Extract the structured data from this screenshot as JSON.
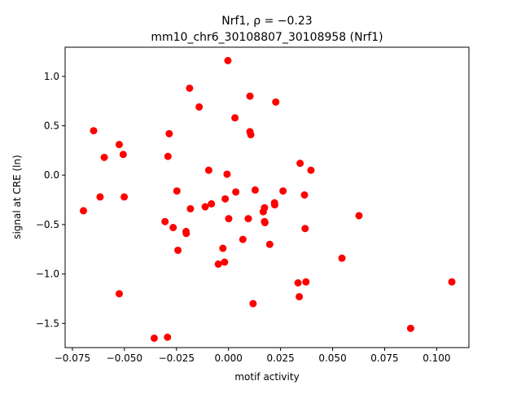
{
  "chart_data": {
    "type": "scatter",
    "title_line1": "Nrf1, ρ = −0.23",
    "title_line2": "mm10_chr6_30108807_30108958 (Nrf1)",
    "xlabel": "motif activity",
    "ylabel": "signal at CRE (ln)",
    "xlim": [
      -0.0785,
      0.1155
    ],
    "ylim": [
      -1.745,
      1.295
    ],
    "xticks": [
      -0.075,
      -0.05,
      -0.025,
      0.0,
      0.025,
      0.05,
      0.075,
      0.1
    ],
    "xtick_labels": [
      "−0.075",
      "−0.050",
      "−0.025",
      "0.000",
      "0.025",
      "0.050",
      "0.075",
      "0.100"
    ],
    "yticks": [
      -1.5,
      -1.0,
      -0.5,
      0.0,
      0.5,
      1.0
    ],
    "ytick_labels": [
      "−1.5",
      "−1.0",
      "−0.5",
      "0.0",
      "0.5",
      "1.0"
    ],
    "grid": false,
    "marker_color": "#ff0000",
    "points": [
      {
        "x": -0.0697,
        "y": -0.36
      },
      {
        "x": -0.0648,
        "y": 0.45
      },
      {
        "x": -0.0617,
        "y": -0.22
      },
      {
        "x": -0.0597,
        "y": 0.18
      },
      {
        "x": -0.0525,
        "y": 0.31
      },
      {
        "x": -0.0525,
        "y": -1.2
      },
      {
        "x": -0.0506,
        "y": 0.21
      },
      {
        "x": -0.0501,
        "y": -0.22
      },
      {
        "x": -0.0357,
        "y": -1.65
      },
      {
        "x": -0.0305,
        "y": -0.47
      },
      {
        "x": -0.0293,
        "y": -1.64
      },
      {
        "x": -0.0291,
        "y": 0.19
      },
      {
        "x": -0.0285,
        "y": 0.42
      },
      {
        "x": -0.0266,
        "y": -0.53
      },
      {
        "x": -0.0248,
        "y": -0.16
      },
      {
        "x": -0.0243,
        "y": -0.76
      },
      {
        "x": -0.0204,
        "y": -0.57
      },
      {
        "x": -0.0203,
        "y": -0.59
      },
      {
        "x": -0.0187,
        "y": 0.88
      },
      {
        "x": -0.0183,
        "y": -0.34
      },
      {
        "x": -0.0141,
        "y": 0.69
      },
      {
        "x": -0.0112,
        "y": -0.32
      },
      {
        "x": -0.0095,
        "y": 0.05
      },
      {
        "x": -0.0082,
        "y": -0.29
      },
      {
        "x": -0.0049,
        "y": -0.9
      },
      {
        "x": -0.0027,
        "y": -0.74
      },
      {
        "x": -0.0019,
        "y": -0.88
      },
      {
        "x": -0.0016,
        "y": -0.24
      },
      {
        "x": -0.0007,
        "y": 0.01
      },
      {
        "x": -0.0003,
        "y": 1.16
      },
      {
        "x": 0.0001,
        "y": -0.44
      },
      {
        "x": 0.0031,
        "y": 0.58
      },
      {
        "x": 0.0035,
        "y": -0.17
      },
      {
        "x": 0.0069,
        "y": -0.65
      },
      {
        "x": 0.0095,
        "y": -0.44
      },
      {
        "x": 0.0103,
        "y": 0.8
      },
      {
        "x": 0.0103,
        "y": 0.44
      },
      {
        "x": 0.0107,
        "y": 0.41
      },
      {
        "x": 0.0118,
        "y": -1.3
      },
      {
        "x": 0.0128,
        "y": -0.15
      },
      {
        "x": 0.0167,
        "y": -0.37
      },
      {
        "x": 0.0173,
        "y": -0.33
      },
      {
        "x": 0.0173,
        "y": -0.47
      },
      {
        "x": 0.0175,
        "y": -0.48
      },
      {
        "x": 0.0198,
        "y": -0.7
      },
      {
        "x": 0.0221,
        "y": -0.28
      },
      {
        "x": 0.0222,
        "y": -0.3
      },
      {
        "x": 0.0227,
        "y": 0.74
      },
      {
        "x": 0.0262,
        "y": -0.16
      },
      {
        "x": 0.0334,
        "y": -1.09
      },
      {
        "x": 0.034,
        "y": -1.23
      },
      {
        "x": 0.0344,
        "y": 0.12
      },
      {
        "x": 0.0365,
        "y": -0.2
      },
      {
        "x": 0.0368,
        "y": -0.54
      },
      {
        "x": 0.0372,
        "y": -1.08
      },
      {
        "x": 0.0396,
        "y": 0.05
      },
      {
        "x": 0.0545,
        "y": -0.84
      },
      {
        "x": 0.0627,
        "y": -0.41
      },
      {
        "x": 0.0875,
        "y": -1.55
      },
      {
        "x": 0.1073,
        "y": -1.08
      }
    ]
  }
}
